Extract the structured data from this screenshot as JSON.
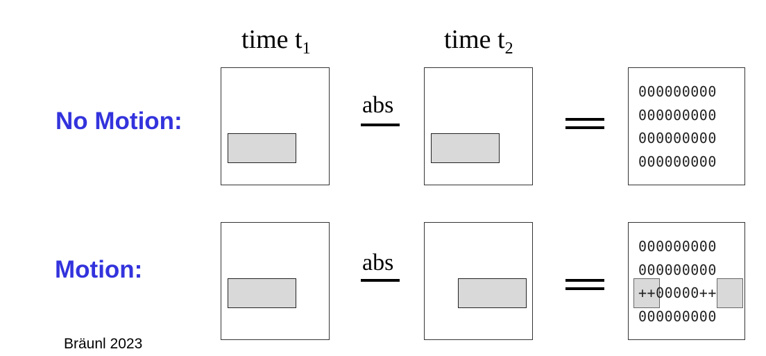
{
  "header": {
    "time1": {
      "text": "time t",
      "sub": "1"
    },
    "time2": {
      "text": "time t",
      "sub": "2"
    }
  },
  "rows": {
    "no_motion": {
      "label": "No Motion:",
      "operator": "abs",
      "result": [
        "000000000",
        "000000000",
        "000000000",
        "000000000"
      ]
    },
    "motion": {
      "label": "Motion:",
      "operator": "abs",
      "result": [
        "000000000",
        "000000000",
        "++00000++",
        "000000000"
      ]
    }
  },
  "credit": "Bräunl 2023",
  "colors": {
    "label": "#3333dd",
    "object_fill": "#d9d9d9",
    "frame_border": "#333333"
  }
}
